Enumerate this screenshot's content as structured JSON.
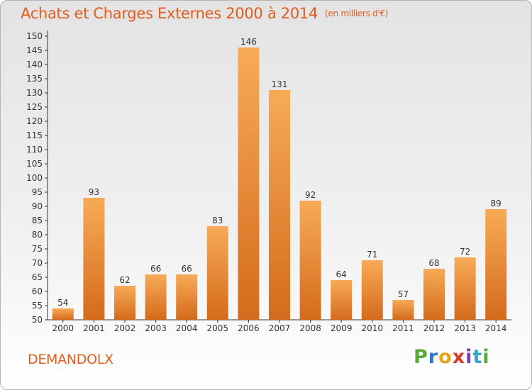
{
  "title": "Achats et Charges Externes 2000 à 2014",
  "subtitle": "(en milliers d'€)",
  "footer_label": "DEMANDOLX",
  "logo": {
    "text": "Proxiti"
  },
  "colors": {
    "accent": "#e35c1e",
    "bar_light": "#f6a852",
    "bar_dark": "#d8701e",
    "axis": "#333333",
    "grid": "#c8c8c8"
  },
  "chart_data": {
    "type": "bar",
    "categories": [
      "2000",
      "2001",
      "2002",
      "2003",
      "2004",
      "2005",
      "2006",
      "2007",
      "2008",
      "2009",
      "2010",
      "2011",
      "2012",
      "2013",
      "2014"
    ],
    "values": [
      54,
      93,
      62,
      66,
      66,
      83,
      146,
      131,
      92,
      64,
      71,
      57,
      68,
      72,
      89
    ],
    "ylim": [
      50,
      150
    ],
    "yticks": [
      50,
      55,
      60,
      65,
      70,
      75,
      80,
      85,
      90,
      95,
      100,
      105,
      110,
      115,
      120,
      125,
      130,
      135,
      140,
      145,
      150
    ],
    "xlabel": "",
    "ylabel": "",
    "grid": false,
    "data_labels": true
  }
}
